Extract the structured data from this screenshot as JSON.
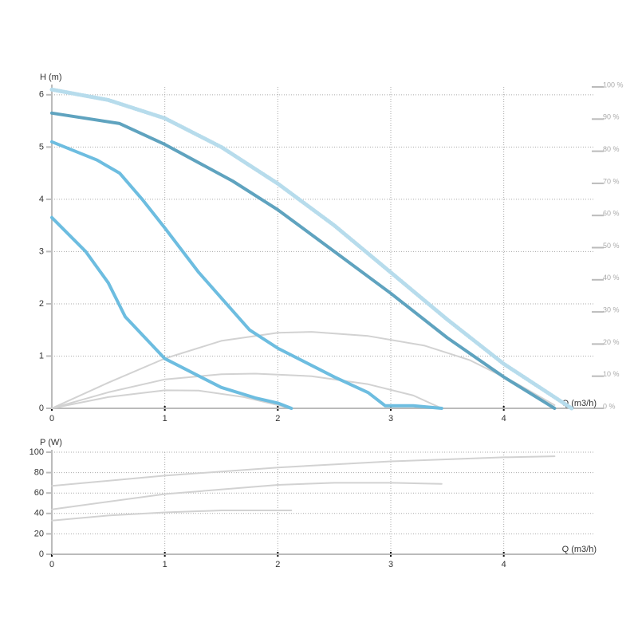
{
  "chart_data": [
    {
      "type": "line",
      "ylabel": "H (m)",
      "xlabel": "Q (m3/h)",
      "xlim": [
        0,
        4.8
      ],
      "ylim": [
        0,
        6.15
      ],
      "y2lim": [
        0,
        100
      ],
      "xticks": [
        0,
        1,
        2,
        3,
        4
      ],
      "yticks": [
        0,
        1,
        2,
        3,
        4,
        5,
        6
      ],
      "y2ticks": [
        {
          "value": 0,
          "label": "0 %"
        },
        {
          "value": 10,
          "label": "10 %"
        },
        {
          "value": 20,
          "label": "20 %"
        },
        {
          "value": 30,
          "label": "30 %"
        },
        {
          "value": 40,
          "label": "40 %"
        },
        {
          "value": 50,
          "label": "50 %"
        },
        {
          "value": 60,
          "label": "60 %"
        },
        {
          "value": 70,
          "label": "70 %"
        },
        {
          "value": 80,
          "label": "80 %"
        },
        {
          "value": 90,
          "label": "90 %"
        },
        {
          "value": 100,
          "label": "100 %"
        }
      ],
      "grid": true,
      "series": [
        {
          "color": "#b7dcec",
          "style": "dotted",
          "x": [
            0,
            0.5,
            1,
            1.5,
            2,
            2.5,
            3,
            3.5,
            4,
            4.6
          ],
          "values": [
            6.1,
            5.9,
            5.55,
            5.0,
            4.3,
            3.5,
            2.6,
            1.7,
            0.85,
            0
          ]
        },
        {
          "color": "#d2d2d2",
          "axis": "y2",
          "x": [
            0,
            0.5,
            1,
            1.5,
            2,
            2.3,
            2.8,
            3.3,
            3.7,
            4.1,
            4.45
          ],
          "values": [
            0,
            8,
            15.5,
            21,
            23.5,
            23.8,
            22.5,
            19.5,
            15,
            8,
            1
          ]
        },
        {
          "color": "#d2d2d2",
          "axis": "y2",
          "x": [
            0,
            0.5,
            1,
            1.5,
            1.8,
            2.3,
            2.8,
            3.2,
            3.45
          ],
          "values": [
            0,
            5,
            9,
            10.6,
            10.8,
            10,
            7.5,
            4,
            0
          ]
        },
        {
          "color": "#d2d2d2",
          "axis": "y2",
          "x": [
            0,
            0.5,
            1,
            1.3,
            1.7,
            2.12
          ],
          "values": [
            0,
            3.5,
            5.6,
            5.5,
            3.5,
            0
          ]
        },
        {
          "color": "#5fa3bf",
          "width": 4,
          "x": [
            0,
            0.6,
            1,
            1.6,
            2,
            2.5,
            3,
            3.5,
            4,
            4.45
          ],
          "values": [
            5.65,
            5.45,
            5.05,
            4.35,
            3.8,
            3.0,
            2.2,
            1.35,
            0.6,
            0
          ]
        },
        {
          "color": "#6dbde0",
          "width": 4,
          "x": [
            0,
            0.4,
            0.6,
            0.8,
            1,
            1.3,
            1.75,
            2,
            2.5,
            2.8,
            2.95,
            3.2,
            3.45
          ],
          "values": [
            5.1,
            4.75,
            4.5,
            4.0,
            3.45,
            2.6,
            1.5,
            1.15,
            0.6,
            0.3,
            0.05,
            0.05,
            0
          ]
        },
        {
          "color": "#6dbde0",
          "width": 4,
          "x": [
            0,
            0.3,
            0.5,
            0.65,
            1,
            1.5,
            1.8,
            2,
            2.12
          ],
          "values": [
            3.65,
            3.0,
            2.4,
            1.75,
            0.95,
            0.4,
            0.2,
            0.1,
            0
          ]
        }
      ]
    },
    {
      "type": "line",
      "ylabel": "P (W)",
      "xlabel": "Q (m3/h)",
      "xlim": [
        0,
        4.8
      ],
      "ylim": [
        0,
        100
      ],
      "xticks": [
        0,
        1,
        2,
        3,
        4
      ],
      "yticks": [
        0,
        20,
        40,
        60,
        80,
        100
      ],
      "grid": true,
      "series": [
        {
          "color": "#d2d2d2",
          "x": [
            0,
            1,
            2,
            3,
            4,
            4.45
          ],
          "values": [
            67,
            77,
            85,
            91,
            95,
            96
          ]
        },
        {
          "color": "#d2d2d2",
          "x": [
            0,
            1,
            2,
            2.5,
            3,
            3.45
          ],
          "values": [
            44,
            59,
            68,
            70,
            70,
            69
          ]
        },
        {
          "color": "#d2d2d2",
          "x": [
            0,
            0.5,
            1,
            1.5,
            2.12
          ],
          "values": [
            33,
            38,
            41,
            43,
            43
          ]
        }
      ]
    }
  ]
}
